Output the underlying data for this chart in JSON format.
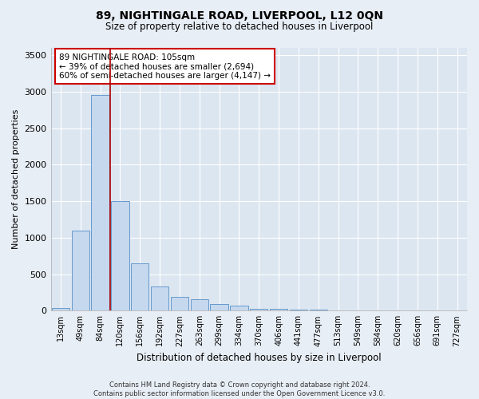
{
  "title": "89, NIGHTINGALE ROAD, LIVERPOOL, L12 0QN",
  "subtitle": "Size of property relative to detached houses in Liverpool",
  "xlabel": "Distribution of detached houses by size in Liverpool",
  "ylabel": "Number of detached properties",
  "categories": [
    "13sqm",
    "49sqm",
    "84sqm",
    "120sqm",
    "156sqm",
    "192sqm",
    "227sqm",
    "263sqm",
    "299sqm",
    "334sqm",
    "370sqm",
    "406sqm",
    "441sqm",
    "477sqm",
    "513sqm",
    "549sqm",
    "584sqm",
    "620sqm",
    "656sqm",
    "691sqm",
    "727sqm"
  ],
  "values": [
    40,
    1100,
    2950,
    1500,
    650,
    330,
    185,
    160,
    90,
    70,
    30,
    25,
    10,
    10,
    5,
    5,
    5,
    2,
    2,
    2,
    2
  ],
  "bar_color": "#c5d8ee",
  "bar_edge_color": "#6699cc",
  "vline_color": "#aa0000",
  "annotation_text": "89 NIGHTINGALE ROAD: 105sqm\n← 39% of detached houses are smaller (2,694)\n60% of semi-detached houses are larger (4,147) →",
  "annotation_box_color": "#ffffff",
  "annotation_box_edge": "#cc0000",
  "ylim": [
    0,
    3600
  ],
  "yticks": [
    0,
    500,
    1000,
    1500,
    2000,
    2500,
    3000,
    3500
  ],
  "footnote": "Contains HM Land Registry data © Crown copyright and database right 2024.\nContains public sector information licensed under the Open Government Licence v3.0.",
  "bg_color": "#e8eef5",
  "plot_bg_color": "#dce6f1"
}
